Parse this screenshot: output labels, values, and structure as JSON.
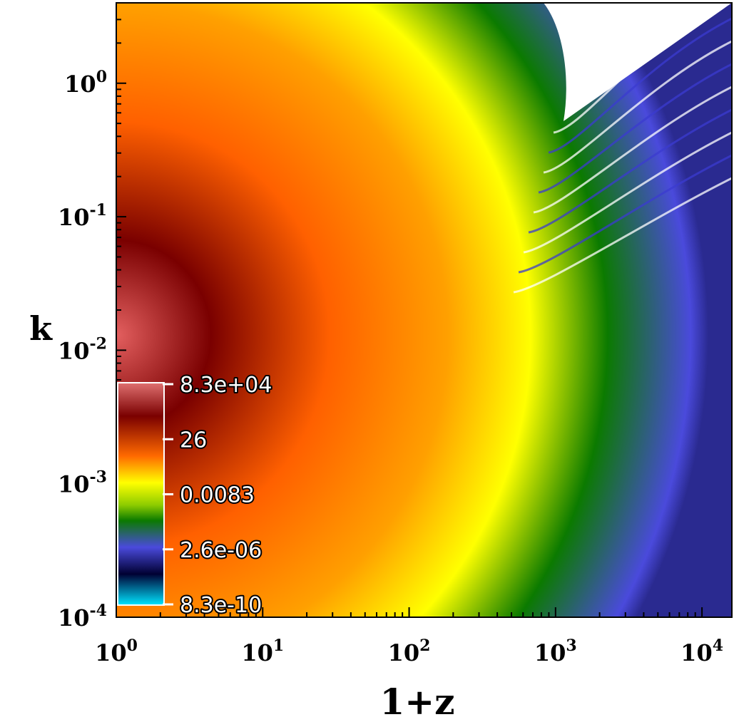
{
  "chart_data": {
    "type": "heatmap",
    "xlabel": "1+z",
    "ylabel": "k",
    "x_scale": "log",
    "y_scale": "log",
    "xlim": [
      1,
      16000
    ],
    "ylim": [
      0.0001,
      4
    ],
    "x_ticks": [
      {
        "value": 1,
        "base": "10",
        "exp": "0"
      },
      {
        "value": 10,
        "base": "10",
        "exp": "1"
      },
      {
        "value": 100,
        "base": "10",
        "exp": "2"
      },
      {
        "value": 1000,
        "base": "10",
        "exp": "3"
      },
      {
        "value": 10000,
        "base": "10",
        "exp": "4"
      }
    ],
    "y_ticks": [
      {
        "value": 0.0001,
        "base": "10",
        "exp": "-4"
      },
      {
        "value": 0.001,
        "base": "10",
        "exp": "-3"
      },
      {
        "value": 0.01,
        "base": "10",
        "exp": "-2"
      },
      {
        "value": 0.1,
        "base": "10",
        "exp": "-1"
      },
      {
        "value": 1,
        "base": "10",
        "exp": "0"
      }
    ],
    "colorbar": {
      "scale": "log",
      "placement": "bottom-left (inside plot)",
      "labels": [
        "8.3e+04",
        "26",
        "0.0083",
        "2.6e-06",
        "8.3e-10"
      ],
      "colors_top_to_bottom": [
        "#e06b6b",
        "#7a0000",
        "#ff6a00",
        "#ffff00",
        "#0b7a00",
        "#4a4adc",
        "#000033",
        "#00e5ff"
      ]
    }
  }
}
